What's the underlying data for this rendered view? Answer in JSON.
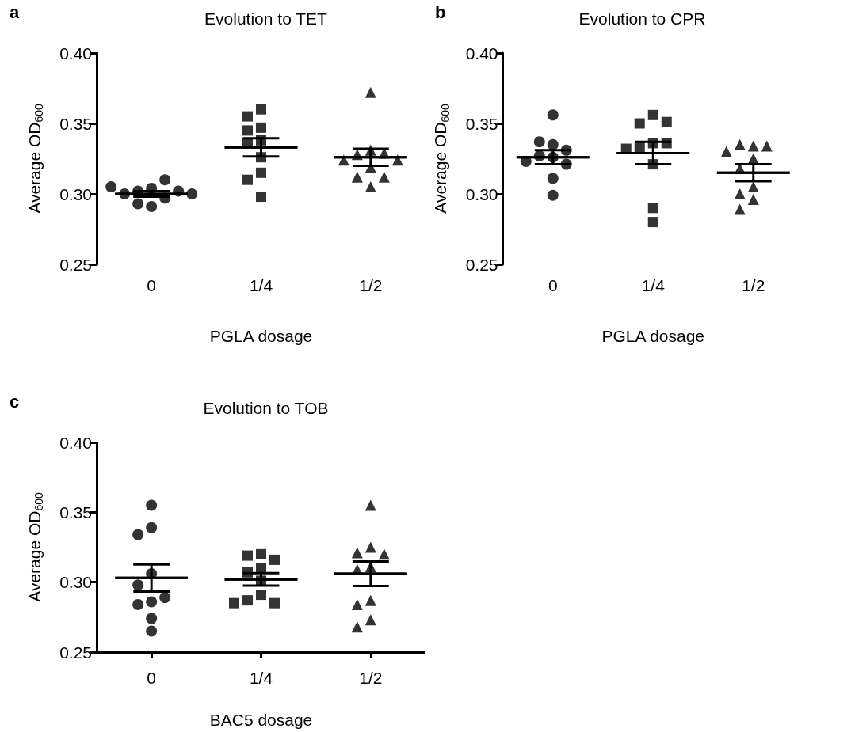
{
  "chart_data": [
    {
      "type": "scatter",
      "title": "Evolution to TET",
      "xlabel": "PGLA dosage",
      "ylabel": "Average OD$_{600}$",
      "annotations": [
        "a"
      ],
      "categories": [
        "0",
        "1/4",
        "1/2"
      ],
      "ylim": [
        0.25,
        0.4
      ],
      "yticks": [
        {
          "value": 0.25,
          "label": "0.25"
        },
        {
          "value": 0.3,
          "label": "0.30"
        },
        {
          "value": 0.35,
          "label": "0.35"
        },
        {
          "value": 0.4,
          "label": "0.40"
        }
      ],
      "series": [
        {
          "type": "scatter",
          "marker": "circle",
          "color": "#000000",
          "x": [
            "0",
            "0",
            "0",
            "0",
            "0",
            "0",
            "0",
            "0",
            "0",
            "0"
          ],
          "values": [
            0.304,
            0.302,
            0.297,
            0.31,
            0.3,
            0.291,
            0.302,
            0.293,
            0.305,
            0.3
          ]
        },
        {
          "type": "scatter",
          "marker": "square",
          "color": "#000000",
          "x": [
            "1/4",
            "1/4",
            "1/4",
            "1/4",
            "1/4",
            "1/4",
            "1/4",
            "1/4",
            "1/4",
            "1/4"
          ],
          "values": [
            0.36,
            0.355,
            0.347,
            0.345,
            0.338,
            0.336,
            0.326,
            0.315,
            0.31,
            0.298
          ]
        },
        {
          "type": "scatter",
          "marker": "triangle",
          "color": "#000000",
          "x": [
            "1/2",
            "1/2",
            "1/2",
            "1/2",
            "1/2",
            "1/2",
            "1/2",
            "1/2",
            "1/2",
            "1/2"
          ],
          "values": [
            0.372,
            0.331,
            0.328,
            0.329,
            0.324,
            0.324,
            0.319,
            0.312,
            0.312,
            0.305
          ]
        },
        {
          "type": "box",
          "color": "#000000",
          "boxes": [
            {
              "low": 0.298,
              "q1": 0.3,
              "median": 0.3,
              "q3": 0.3,
              "high": 0.302
            },
            {
              "low": 0.3265,
              "q1": 0.333,
              "median": 0.333,
              "q3": 0.333,
              "high": 0.3395
            },
            {
              "low": 0.32,
              "q1": 0.326,
              "median": 0.326,
              "q3": 0.326,
              "high": 0.332
            }
          ]
        }
      ]
    },
    {
      "type": "scatter",
      "title": "Evolution to CPR",
      "xlabel": "PGLA dosage",
      "ylabel": "Average OD$_{600}$",
      "annotations": [
        "b"
      ],
      "categories": [
        "0",
        "1/4",
        "1/2"
      ],
      "ylim": [
        0.25,
        0.4
      ],
      "yticks": [
        {
          "value": 0.25,
          "label": "0.25"
        },
        {
          "value": 0.3,
          "label": "0.30"
        },
        {
          "value": 0.35,
          "label": "0.35"
        },
        {
          "value": 0.4,
          "label": "0.40"
        }
      ],
      "series": [
        {
          "type": "scatter",
          "marker": "circle",
          "color": "#000000",
          "x": [
            "0",
            "0",
            "0",
            "0",
            "0",
            "0",
            "0",
            "0",
            "0",
            "0"
          ],
          "values": [
            0.356,
            0.335,
            0.337,
            0.331,
            0.327,
            0.326,
            0.321,
            0.323,
            0.311,
            0.299
          ]
        },
        {
          "type": "scatter",
          "marker": "square",
          "color": "#000000",
          "x": [
            "1/4",
            "1/4",
            "1/4",
            "1/4",
            "1/4",
            "1/4",
            "1/4",
            "1/4",
            "1/4",
            "1/4"
          ],
          "values": [
            0.356,
            0.35,
            0.351,
            0.336,
            0.333,
            0.336,
            0.332,
            0.321,
            0.29,
            0.28
          ]
        },
        {
          "type": "scatter",
          "marker": "triangle",
          "color": "#000000",
          "x": [
            "1/2",
            "1/2",
            "1/2",
            "1/2",
            "1/2",
            "1/2",
            "1/2",
            "1/2",
            "1/2",
            "1/2"
          ],
          "values": [
            0.334,
            0.335,
            0.334,
            0.33,
            0.325,
            0.318,
            0.305,
            0.3,
            0.296,
            0.289
          ]
        },
        {
          "type": "box",
          "color": "#000000",
          "boxes": [
            {
              "low": 0.321,
              "q1": 0.326,
              "median": 0.326,
              "q3": 0.326,
              "high": 0.331
            },
            {
              "low": 0.321,
              "q1": 0.329,
              "median": 0.329,
              "q3": 0.329,
              "high": 0.337
            },
            {
              "low": 0.309,
              "q1": 0.315,
              "median": 0.315,
              "q3": 0.315,
              "high": 0.321
            }
          ]
        }
      ]
    },
    {
      "type": "scatter",
      "title": "Evolution to TOB",
      "xlabel": "BAC5 dosage",
      "ylabel": "Average OD$_{600}$",
      "annotations": [
        "c"
      ],
      "categories": [
        "0",
        "1/4",
        "1/2"
      ],
      "ylim": [
        0.25,
        0.4
      ],
      "yticks": [
        {
          "value": 0.25,
          "label": "0.25"
        },
        {
          "value": 0.3,
          "label": "0.30"
        },
        {
          "value": 0.35,
          "label": "0.35"
        },
        {
          "value": 0.4,
          "label": "0.40"
        }
      ],
      "series": [
        {
          "type": "scatter",
          "marker": "circle",
          "color": "#000000",
          "x": [
            "0",
            "0",
            "0",
            "0",
            "0",
            "0",
            "0",
            "0",
            "0",
            "0"
          ],
          "values": [
            0.355,
            0.339,
            0.334,
            0.306,
            0.298,
            0.286,
            0.284,
            0.289,
            0.274,
            0.265
          ]
        },
        {
          "type": "scatter",
          "marker": "square",
          "color": "#000000",
          "x": [
            "1/4",
            "1/4",
            "1/4",
            "1/4",
            "1/4",
            "1/4",
            "1/4",
            "1/4",
            "1/4",
            "1/4"
          ],
          "values": [
            0.32,
            0.319,
            0.316,
            0.31,
            0.307,
            0.301,
            0.291,
            0.287,
            0.285,
            0.285
          ]
        },
        {
          "type": "scatter",
          "marker": "triangle",
          "color": "#000000",
          "x": [
            "1/2",
            "1/2",
            "1/2",
            "1/2",
            "1/2",
            "1/2",
            "1/2",
            "1/2",
            "1/2",
            "1/2"
          ],
          "values": [
            0.355,
            0.325,
            0.321,
            0.32,
            0.311,
            0.309,
            0.287,
            0.284,
            0.273,
            0.268
          ]
        },
        {
          "type": "box",
          "color": "#000000",
          "boxes": [
            {
              "low": 0.2933,
              "q1": 0.303,
              "median": 0.303,
              "q3": 0.303,
              "high": 0.3127
            },
            {
              "low": 0.2976,
              "q1": 0.302,
              "median": 0.302,
              "q3": 0.302,
              "high": 0.3064
            },
            {
              "low": 0.2972,
              "q1": 0.306,
              "median": 0.306,
              "q3": 0.306,
              "high": 0.3148
            }
          ]
        }
      ]
    }
  ]
}
